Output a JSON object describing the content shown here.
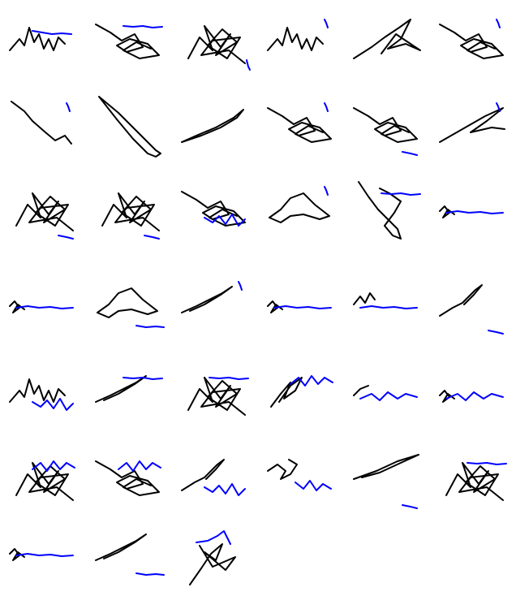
{
  "colors": {
    "background": "#ffffff",
    "trajectory": "#000000",
    "extension": "#0000ff"
  },
  "grid": {
    "rows": 7,
    "columns": 6,
    "panel_count": 39
  },
  "panels": [
    {
      "name": "trajectory-01",
      "black_shape": "zigzag",
      "blue_tail": "flat-right"
    },
    {
      "name": "trajectory-02",
      "black_shape": "tangle",
      "blue_tail": "flat-top"
    },
    {
      "name": "trajectory-03",
      "black_shape": "dense-tangle",
      "blue_tail": "short-end"
    },
    {
      "name": "trajectory-04",
      "black_shape": "zigzag",
      "blue_tail": "short-top"
    },
    {
      "name": "trajectory-05",
      "black_shape": "diagonal-tangle",
      "blue_tail": "none"
    },
    {
      "name": "trajectory-06",
      "black_shape": "tangle",
      "blue_tail": "short-top"
    },
    {
      "name": "trajectory-07",
      "black_shape": "diagonal-hook",
      "blue_tail": "short-top"
    },
    {
      "name": "trajectory-08",
      "black_shape": "long-loop",
      "blue_tail": "none"
    },
    {
      "name": "trajectory-09",
      "black_shape": "thin-loop",
      "blue_tail": "none"
    },
    {
      "name": "trajectory-10",
      "black_shape": "tangle",
      "blue_tail": "short-top"
    },
    {
      "name": "trajectory-11",
      "black_shape": "tangle",
      "blue_tail": "short-bottom"
    },
    {
      "name": "trajectory-12",
      "black_shape": "fan",
      "blue_tail": "short-top"
    },
    {
      "name": "trajectory-13",
      "black_shape": "dense-tangle",
      "blue_tail": "short-bottom"
    },
    {
      "name": "trajectory-14",
      "black_shape": "dense-tangle",
      "blue_tail": "short-bottom"
    },
    {
      "name": "trajectory-15",
      "black_shape": "tangle",
      "blue_tail": "noisy-bottom"
    },
    {
      "name": "trajectory-16",
      "black_shape": "loop",
      "blue_tail": "short-top"
    },
    {
      "name": "trajectory-17",
      "black_shape": "large-loop",
      "blue_tail": "flat-top"
    },
    {
      "name": "trajectory-18",
      "black_shape": "small-knot",
      "blue_tail": "flat-long"
    },
    {
      "name": "trajectory-19",
      "black_shape": "small-knot",
      "blue_tail": "flat-long"
    },
    {
      "name": "trajectory-20",
      "black_shape": "loop",
      "blue_tail": "flat-bottom"
    },
    {
      "name": "trajectory-21",
      "black_shape": "diagonal-line",
      "blue_tail": "short-top"
    },
    {
      "name": "trajectory-22",
      "black_shape": "small-knot",
      "blue_tail": "flat-long"
    },
    {
      "name": "trajectory-23",
      "black_shape": "small-zigzag",
      "blue_tail": "flat-long"
    },
    {
      "name": "trajectory-24",
      "black_shape": "diagonal-knot",
      "blue_tail": "short-bottom"
    },
    {
      "name": "trajectory-25",
      "black_shape": "zigzag",
      "blue_tail": "noisy-bottom"
    },
    {
      "name": "trajectory-26",
      "black_shape": "diagonal-line",
      "blue_tail": "flat-top"
    },
    {
      "name": "trajectory-27",
      "black_shape": "dense-tangle",
      "blue_tail": "flat-top"
    },
    {
      "name": "trajectory-28",
      "black_shape": "knot",
      "blue_tail": "noisy-top"
    },
    {
      "name": "trajectory-29",
      "black_shape": "short-line",
      "blue_tail": "noisy-long"
    },
    {
      "name": "trajectory-30",
      "black_shape": "small-knot",
      "blue_tail": "noisy-long"
    },
    {
      "name": "trajectory-31",
      "black_shape": "dense-tangle",
      "blue_tail": "noisy-top"
    },
    {
      "name": "trajectory-32",
      "black_shape": "tangle",
      "blue_tail": "noisy-top"
    },
    {
      "name": "trajectory-33",
      "black_shape": "diagonal-knot",
      "blue_tail": "noisy-bottom"
    },
    {
      "name": "trajectory-34",
      "black_shape": "small-tangle",
      "blue_tail": "noisy-down"
    },
    {
      "name": "trajectory-35",
      "black_shape": "long-wedge",
      "blue_tail": "short-bottom"
    },
    {
      "name": "trajectory-36",
      "black_shape": "dense-tangle",
      "blue_tail": "flat-top"
    },
    {
      "name": "trajectory-37",
      "black_shape": "small-knot",
      "blue_tail": "flat-long"
    },
    {
      "name": "trajectory-38",
      "black_shape": "diagonal-line",
      "blue_tail": "flat-bottom"
    },
    {
      "name": "trajectory-39",
      "black_shape": "tall-tangle",
      "blue_tail": "hook-top"
    }
  ]
}
